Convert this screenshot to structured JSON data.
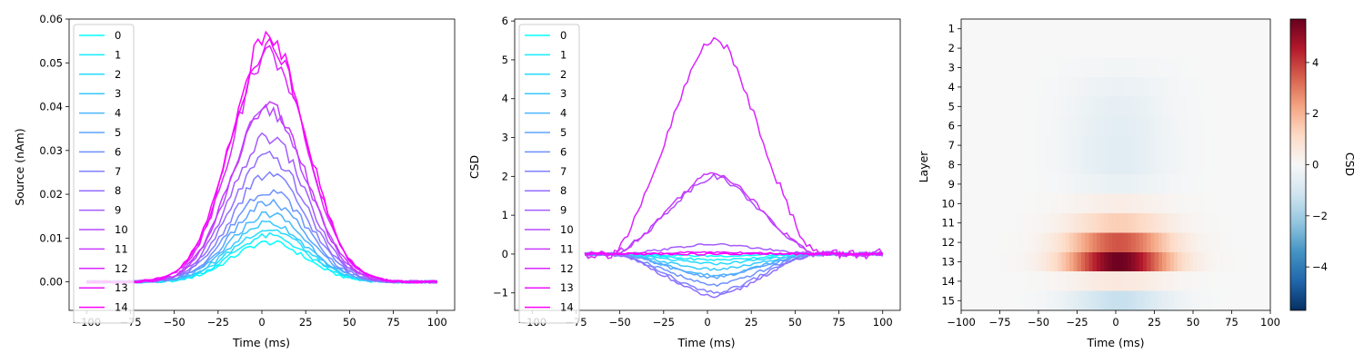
{
  "chart_data": [
    {
      "type": "line",
      "title": "",
      "xlabel": "Time (ms)",
      "ylabel": "Source (nAm)",
      "xlim": [
        -110,
        110
      ],
      "ylim": [
        -0.0065,
        0.06
      ],
      "xticks": [
        -100,
        -75,
        -50,
        -25,
        0,
        25,
        50,
        75,
        100
      ],
      "yticks": [
        0.0,
        0.01,
        0.02,
        0.03,
        0.04,
        0.05,
        0.06
      ],
      "ytick_labels": [
        "0.00",
        "0.01",
        "0.02",
        "0.03",
        "0.04",
        "0.05",
        "0.06"
      ],
      "grid": false,
      "legend_position": "top-left",
      "x_range": [
        -100,
        100
      ],
      "series": [
        {
          "name": "0",
          "peak": 0.009,
          "color": "#00ffff"
        },
        {
          "name": "1",
          "peak": 0.0105,
          "color": "#12edff"
        },
        {
          "name": "2",
          "peak": 0.012,
          "color": "#24dbff"
        },
        {
          "name": "3",
          "peak": 0.0135,
          "color": "#36c9ff"
        },
        {
          "name": "4",
          "peak": 0.0155,
          "color": "#48b7ff"
        },
        {
          "name": "5",
          "peak": 0.018,
          "color": "#5ba4ff"
        },
        {
          "name": "6",
          "peak": 0.021,
          "color": "#6d92ff"
        },
        {
          "name": "7",
          "peak": 0.0245,
          "color": "#7f80ff"
        },
        {
          "name": "8",
          "peak": 0.0285,
          "color": "#916eff"
        },
        {
          "name": "9",
          "peak": 0.033,
          "color": "#a35cff"
        },
        {
          "name": "10",
          "peak": 0.039,
          "color": "#b64aff"
        },
        {
          "name": "11",
          "peak": 0.04,
          "color": "#c837ff"
        },
        {
          "name": "12",
          "peak": 0.052,
          "color": "#da25ff"
        },
        {
          "name": "13",
          "peak": 0.054,
          "color": "#ec13ff"
        },
        {
          "name": "14",
          "peak": 0.056,
          "color": "#ff00ff"
        }
      ]
    },
    {
      "type": "line",
      "title": "",
      "xlabel": "Time (ms)",
      "ylabel": "CSD",
      "xlim": [
        -110,
        110
      ],
      "ylim": [
        -1.45,
        6.05
      ],
      "xticks": [
        -100,
        -75,
        -50,
        -25,
        0,
        25,
        50,
        75,
        100
      ],
      "yticks": [
        -1,
        0,
        1,
        2,
        3,
        4,
        5,
        6
      ],
      "ytick_labels": [
        "−1",
        "0",
        "1",
        "2",
        "3",
        "4",
        "5",
        "6"
      ],
      "grid": false,
      "legend_position": "top-left",
      "x_range": [
        -70,
        100
      ],
      "series": [
        {
          "name": "0",
          "peak": -0.05,
          "color": "#00ffff"
        },
        {
          "name": "1",
          "peak": -0.15,
          "color": "#12edff"
        },
        {
          "name": "2",
          "peak": -0.25,
          "color": "#24dbff"
        },
        {
          "name": "3",
          "peak": -0.4,
          "color": "#36c9ff"
        },
        {
          "name": "4",
          "peak": -0.55,
          "color": "#48b7ff"
        },
        {
          "name": "5",
          "peak": -0.6,
          "color": "#5ba4ff"
        },
        {
          "name": "6",
          "peak": -0.8,
          "color": "#6d92ff"
        },
        {
          "name": "7",
          "peak": -1.0,
          "color": "#7f80ff"
        },
        {
          "name": "8",
          "peak": -1.1,
          "color": "#916eff"
        },
        {
          "name": "9",
          "peak": 0.25,
          "color": "#a35cff"
        },
        {
          "name": "10",
          "peak": 2.0,
          "color": "#b64aff"
        },
        {
          "name": "11",
          "peak": 2.1,
          "color": "#c837ff"
        },
        {
          "name": "12",
          "peak": 5.6,
          "color": "#da25ff"
        },
        {
          "name": "13",
          "peak": 0.05,
          "color": "#ec13ff"
        },
        {
          "name": "14",
          "peak": 0.0,
          "color": "#ff00ff"
        }
      ]
    },
    {
      "type": "heatmap",
      "title": "",
      "xlabel": "Time (ms)",
      "ylabel": "Layer",
      "xlim": [
        -100,
        100
      ],
      "xticks": [
        -100,
        -75,
        -50,
        -25,
        0,
        25,
        50,
        75,
        100
      ],
      "xtick_labels": [
        "−100",
        "−75",
        "−50",
        "−25",
        "0",
        "25",
        "50",
        "75",
        "100"
      ],
      "yticks": [
        1,
        2,
        3,
        4,
        5,
        6,
        7,
        8,
        9,
        10,
        11,
        12,
        13,
        14,
        15
      ],
      "ytick_labels": [
        "1",
        "2",
        "3",
        "4",
        "5",
        "6",
        "7",
        "8",
        "9",
        "10",
        "11",
        "12",
        "13",
        "14",
        "15"
      ],
      "rows": [
        {
          "layer": 1,
          "peak": 0.0
        },
        {
          "layer": 2,
          "peak": 0.0
        },
        {
          "layer": 3,
          "peak": -0.15
        },
        {
          "layer": 4,
          "peak": -0.35
        },
        {
          "layer": 5,
          "peak": -0.5
        },
        {
          "layer": 6,
          "peak": -0.6
        },
        {
          "layer": 7,
          "peak": -0.65
        },
        {
          "layer": 8,
          "peak": -0.65
        },
        {
          "layer": 9,
          "peak": -0.4
        },
        {
          "layer": 10,
          "peak": 0.4
        },
        {
          "layer": 11,
          "peak": 1.4
        },
        {
          "layer": 12,
          "peak": 3.6
        },
        {
          "layer": 13,
          "peak": 5.6
        },
        {
          "layer": 14,
          "peak": 0.6
        },
        {
          "layer": 15,
          "peak": -1.3
        }
      ],
      "colorbar": {
        "label": "CSD",
        "range": [
          -5.7,
          5.7
        ],
        "ticks": [
          -4,
          -2,
          0,
          2,
          4
        ],
        "tick_labels": [
          "−4",
          "−2",
          "0",
          "2",
          "4"
        ],
        "colormap": "RdBu_r"
      }
    }
  ]
}
